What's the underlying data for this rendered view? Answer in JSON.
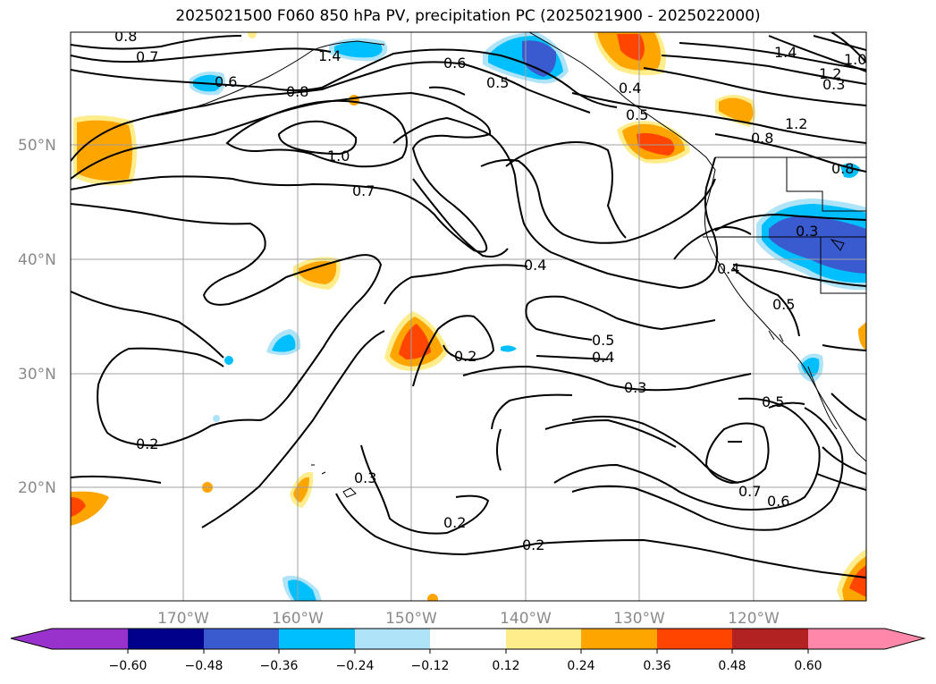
{
  "title": "2025021500 F060 850 hPa PV, precipitation PC (2025021900 - 2025022000)",
  "map": {
    "lat_ticks": [
      "50°N",
      "40°N",
      "30°N",
      "20°N"
    ],
    "lon_ticks": [
      "170°W",
      "160°W",
      "150°W",
      "140°W",
      "130°W",
      "120°W"
    ],
    "contour_labels": [
      "0.8",
      "0.7",
      "0.6",
      "0.8",
      "1.4",
      "0.6",
      "0.5",
      "0.4",
      "0.5",
      "1.4",
      "1.2",
      "1.0",
      "1.2",
      "0.8",
      "0.8",
      "1.0",
      "0.7",
      "0.3",
      "0.4",
      "0.4",
      "0.5",
      "0.5",
      "0.4",
      "0.3",
      "0.2",
      "0.5",
      "0.2",
      "0.3",
      "0.7",
      "0.6",
      "0.2",
      "0.2",
      "0.3"
    ],
    "colors": {
      "grid": "#a0a0a0",
      "tick_text": "#8a8a8a",
      "contour": "#000000",
      "coast": "#000000"
    }
  },
  "colorbar": {
    "levels": [
      "−0.60",
      "−0.48",
      "−0.36",
      "−0.24",
      "−0.12",
      "0.12",
      "0.24",
      "0.36",
      "0.48",
      "0.60"
    ],
    "colors": [
      "#9932cc",
      "#00008b",
      "#3a5bd0",
      "#00bfff",
      "#aee3f8",
      "#ffffff",
      "#ffec8b",
      "#ffa500",
      "#ff4500",
      "#b22222",
      "#ff88aa"
    ]
  }
}
